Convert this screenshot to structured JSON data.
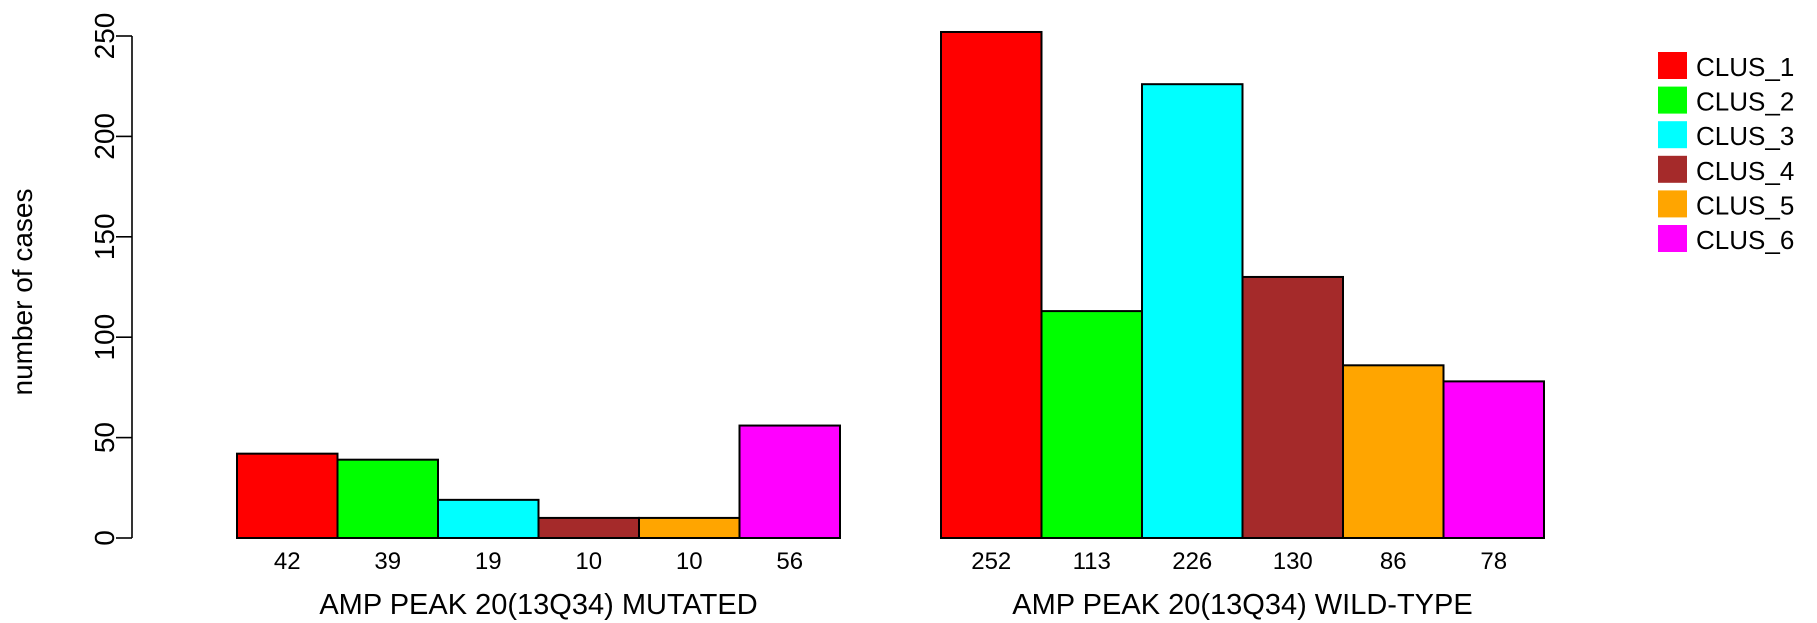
{
  "chart_data": {
    "type": "bar",
    "ylabel": "number of cases",
    "ylim": [
      0,
      250
    ],
    "yticks": [
      0,
      50,
      100,
      150,
      200,
      250
    ],
    "grid": false,
    "legend_position": "top-right",
    "series": [
      {
        "name": "CLUS_1",
        "color": "#FF0000"
      },
      {
        "name": "CLUS_2",
        "color": "#00FF00"
      },
      {
        "name": "CLUS_3",
        "color": "#00FFFF"
      },
      {
        "name": "CLUS_4",
        "color": "#A52A2A"
      },
      {
        "name": "CLUS_5",
        "color": "#FFA500"
      },
      {
        "name": "CLUS_6",
        "color": "#FF00FF"
      }
    ],
    "groups": [
      {
        "label": "AMP PEAK 20(13Q34) MUTATED",
        "values": [
          42,
          39,
          19,
          10,
          10,
          56
        ]
      },
      {
        "label": "AMP PEAK 20(13Q34) WILD-TYPE",
        "values": [
          252,
          113,
          226,
          130,
          86,
          78
        ]
      }
    ]
  }
}
